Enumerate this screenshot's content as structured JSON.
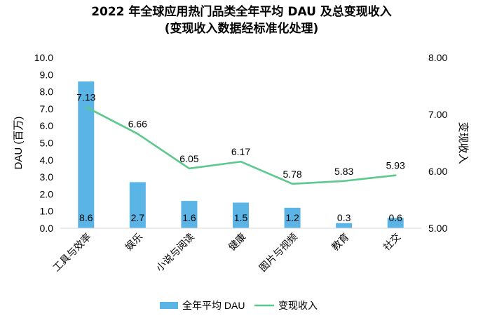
{
  "chart_data": {
    "type": "bar+line",
    "title": "2022 年全球应用热门品类全年平均 DAU 及总变现收入",
    "subtitle": "(变现收入数据经标准化处理)",
    "categories": [
      "工具与效率",
      "娱乐",
      "小说与阅读",
      "健康",
      "图片与视频",
      "教育",
      "社交"
    ],
    "series": [
      {
        "name": "全年平均 DAU",
        "type": "bar",
        "axis": "left",
        "color": "#5ab4e5",
        "values": [
          8.6,
          2.7,
          1.6,
          1.5,
          1.2,
          0.3,
          0.6
        ],
        "labels": [
          "8.6",
          "2.7",
          "1.6",
          "1.5",
          "1.2",
          "0.3",
          "0.6"
        ]
      },
      {
        "name": "变现收入",
        "type": "line",
        "axis": "right",
        "color": "#5cc98c",
        "values": [
          7.13,
          6.66,
          6.05,
          6.17,
          5.78,
          5.83,
          5.93
        ],
        "labels": [
          "7.13",
          "6.66",
          "6.05",
          "6.17",
          "5.78",
          "5.83",
          "5.93"
        ]
      }
    ],
    "ylabel": "DAU (百万)",
    "ylabel_right": "变现收入",
    "ylim": [
      0,
      10
    ],
    "ylim_right": [
      5,
      8
    ],
    "yticks": [
      "0.0",
      "1.0",
      "2.0",
      "3.0",
      "4.0",
      "5.0",
      "6.0",
      "7.0",
      "8.0",
      "9.0",
      "10.0"
    ],
    "yticks_right": [
      "5.00",
      "6.00",
      "7.00",
      "8.00"
    ],
    "grid": false,
    "legend_position": "bottom"
  }
}
